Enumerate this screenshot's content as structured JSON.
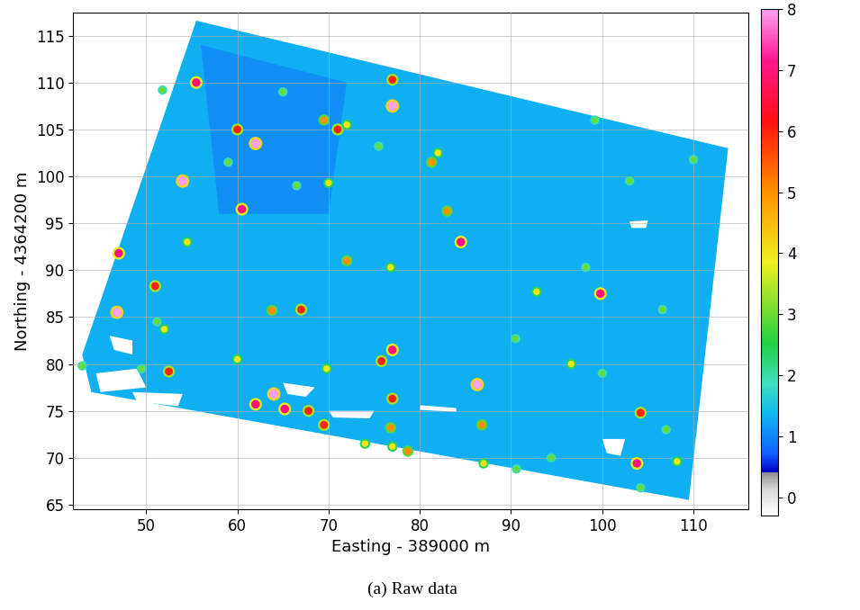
{
  "chart_data": {
    "type": "map",
    "caption": "(a) Raw data",
    "x_label": "Easting - 389000 m",
    "y_label": "Northing - 4364200 m",
    "xlim": [
      42,
      116
    ],
    "ylim": [
      64.5,
      117.5
    ],
    "xticks": [
      50,
      60,
      70,
      80,
      90,
      100,
      110
    ],
    "yticks": [
      65,
      70,
      75,
      80,
      85,
      90,
      95,
      100,
      105,
      110,
      115
    ],
    "grid": true,
    "colorbar": {
      "range": [
        -0.3,
        8
      ],
      "ticks": [
        0,
        1,
        2,
        3,
        4,
        5,
        6,
        7,
        8
      ]
    },
    "survey_area": {
      "x": [
        55.5,
        113.8,
        109.5,
        44,
        43
      ],
      "y": [
        116.6,
        103,
        65.5,
        77,
        81
      ],
      "value": 1.3
    },
    "low_zone": {
      "x": [
        56,
        72,
        70,
        58
      ],
      "y": [
        114,
        110,
        96,
        96
      ],
      "value": 0.9
    },
    "gaps": [
      {
        "x": [
          44.5,
          49,
          50,
          45
        ],
        "y": [
          79,
          79.5,
          77.5,
          77
        ]
      },
      {
        "x": [
          46,
          48.5,
          48.5,
          46.5
        ],
        "y": [
          83,
          82.5,
          81,
          81.5
        ]
      },
      {
        "x": [
          65,
          68.5,
          67.5,
          65.5
        ],
        "y": [
          78,
          77.5,
          76.5,
          76.8
        ]
      },
      {
        "x": [
          70,
          75,
          74.5,
          70.5
        ],
        "y": [
          75,
          75,
          74.2,
          74.3
        ]
      },
      {
        "x": [
          80,
          84,
          84,
          80
        ],
        "y": [
          75.6,
          75.3,
          74.9,
          75.1
        ]
      },
      {
        "x": [
          100,
          102.5,
          102,
          100.5
        ],
        "y": [
          72,
          72,
          70.2,
          70.5
        ]
      },
      {
        "x": [
          103,
          105,
          104.8,
          103.2
        ],
        "y": [
          95.2,
          95.3,
          94.5,
          94.5
        ]
      },
      {
        "x": [
          48.5,
          54,
          53.5,
          49
        ],
        "y": [
          77,
          76.8,
          75.5,
          76
        ]
      }
    ],
    "anomalies": {
      "x": [
        55.5,
        77,
        77,
        60,
        62,
        69.5,
        71,
        72,
        54,
        60.5,
        54.5,
        84.5,
        47,
        51,
        46.8,
        63.8,
        67,
        72,
        76.8,
        83,
        70,
        66.5,
        52.5,
        60,
        62,
        64,
        65.2,
        67.8,
        69.5,
        69.8,
        75.8,
        77,
        77,
        76.8,
        74,
        77,
        86.3,
        86.8,
        87,
        90.6,
        94.4,
        96.6,
        99.8,
        92.8,
        98.2,
        104.2,
        103.8,
        107,
        108.2,
        106.6,
        82,
        81.3,
        90.5,
        100,
        52,
        51.2,
        49.5,
        43,
        99.2,
        103,
        110,
        75.5,
        59,
        51.8,
        65,
        78.7,
        104.2
      ],
      "y": [
        110,
        110.3,
        107.5,
        105,
        103.5,
        106,
        105,
        105.5,
        99.5,
        96.5,
        93,
        93,
        91.8,
        88.3,
        85.5,
        85.7,
        85.8,
        91,
        90.3,
        96.3,
        99.3,
        99,
        79.2,
        80.5,
        75.7,
        76.8,
        75.2,
        75,
        73.5,
        79.5,
        80.3,
        81.5,
        76.3,
        73.2,
        71.5,
        71.2,
        77.8,
        73.5,
        69.4,
        68.8,
        70,
        80,
        87.5,
        87.7,
        90.3,
        74.8,
        69.4,
        73,
        69.6,
        85.8,
        102.5,
        101.5,
        82.7,
        79,
        83.7,
        84.5,
        79.5,
        79.8,
        106,
        99.5,
        101.8,
        103.2,
        101.5,
        109.2,
        109,
        70.7,
        66.8
      ],
      "values": [
        7,
        6,
        8,
        6,
        8,
        5,
        6,
        4,
        8,
        7,
        4,
        7,
        7,
        6,
        8,
        5,
        6,
        5,
        4,
        5,
        4,
        3,
        6,
        4,
        7,
        8,
        7,
        6,
        6,
        4,
        6,
        7,
        6,
        5,
        4,
        4,
        8,
        5,
        4,
        3,
        3,
        4,
        7,
        4,
        3,
        6,
        7,
        3,
        4,
        3,
        4,
        5,
        3,
        3,
        4,
        3,
        3,
        3,
        3,
        3,
        3,
        3,
        3,
        3,
        3,
        5,
        3
      ]
    }
  }
}
